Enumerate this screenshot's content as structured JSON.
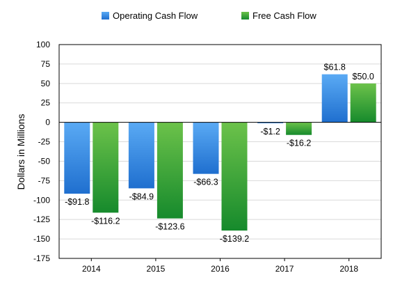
{
  "chart_data": {
    "type": "bar",
    "title": "",
    "xlabel": "",
    "ylabel": "Dollars in Millions",
    "ylim": [
      -175,
      100
    ],
    "ytick_step": 25,
    "grid": true,
    "legend_position": "top",
    "categories": [
      "2014",
      "2015",
      "2016",
      "2017",
      "2018"
    ],
    "series": [
      {
        "name": "Operating Cash Flow",
        "color": "#2f7fd6",
        "values": [
          -91.8,
          -84.9,
          -66.3,
          -1.2,
          61.8
        ],
        "labels": [
          "-$91.8",
          "-$84.9",
          "-$66.3",
          "-$1.2",
          "$61.8"
        ]
      },
      {
        "name": "Free Cash Flow",
        "color": "#2f9e3a",
        "values": [
          -116.2,
          -123.6,
          -139.2,
          -16.2,
          50.0
        ],
        "labels": [
          "-$116.2",
          "-$123.6",
          "-$139.2",
          "-$16.2",
          "$50.0"
        ]
      }
    ]
  }
}
